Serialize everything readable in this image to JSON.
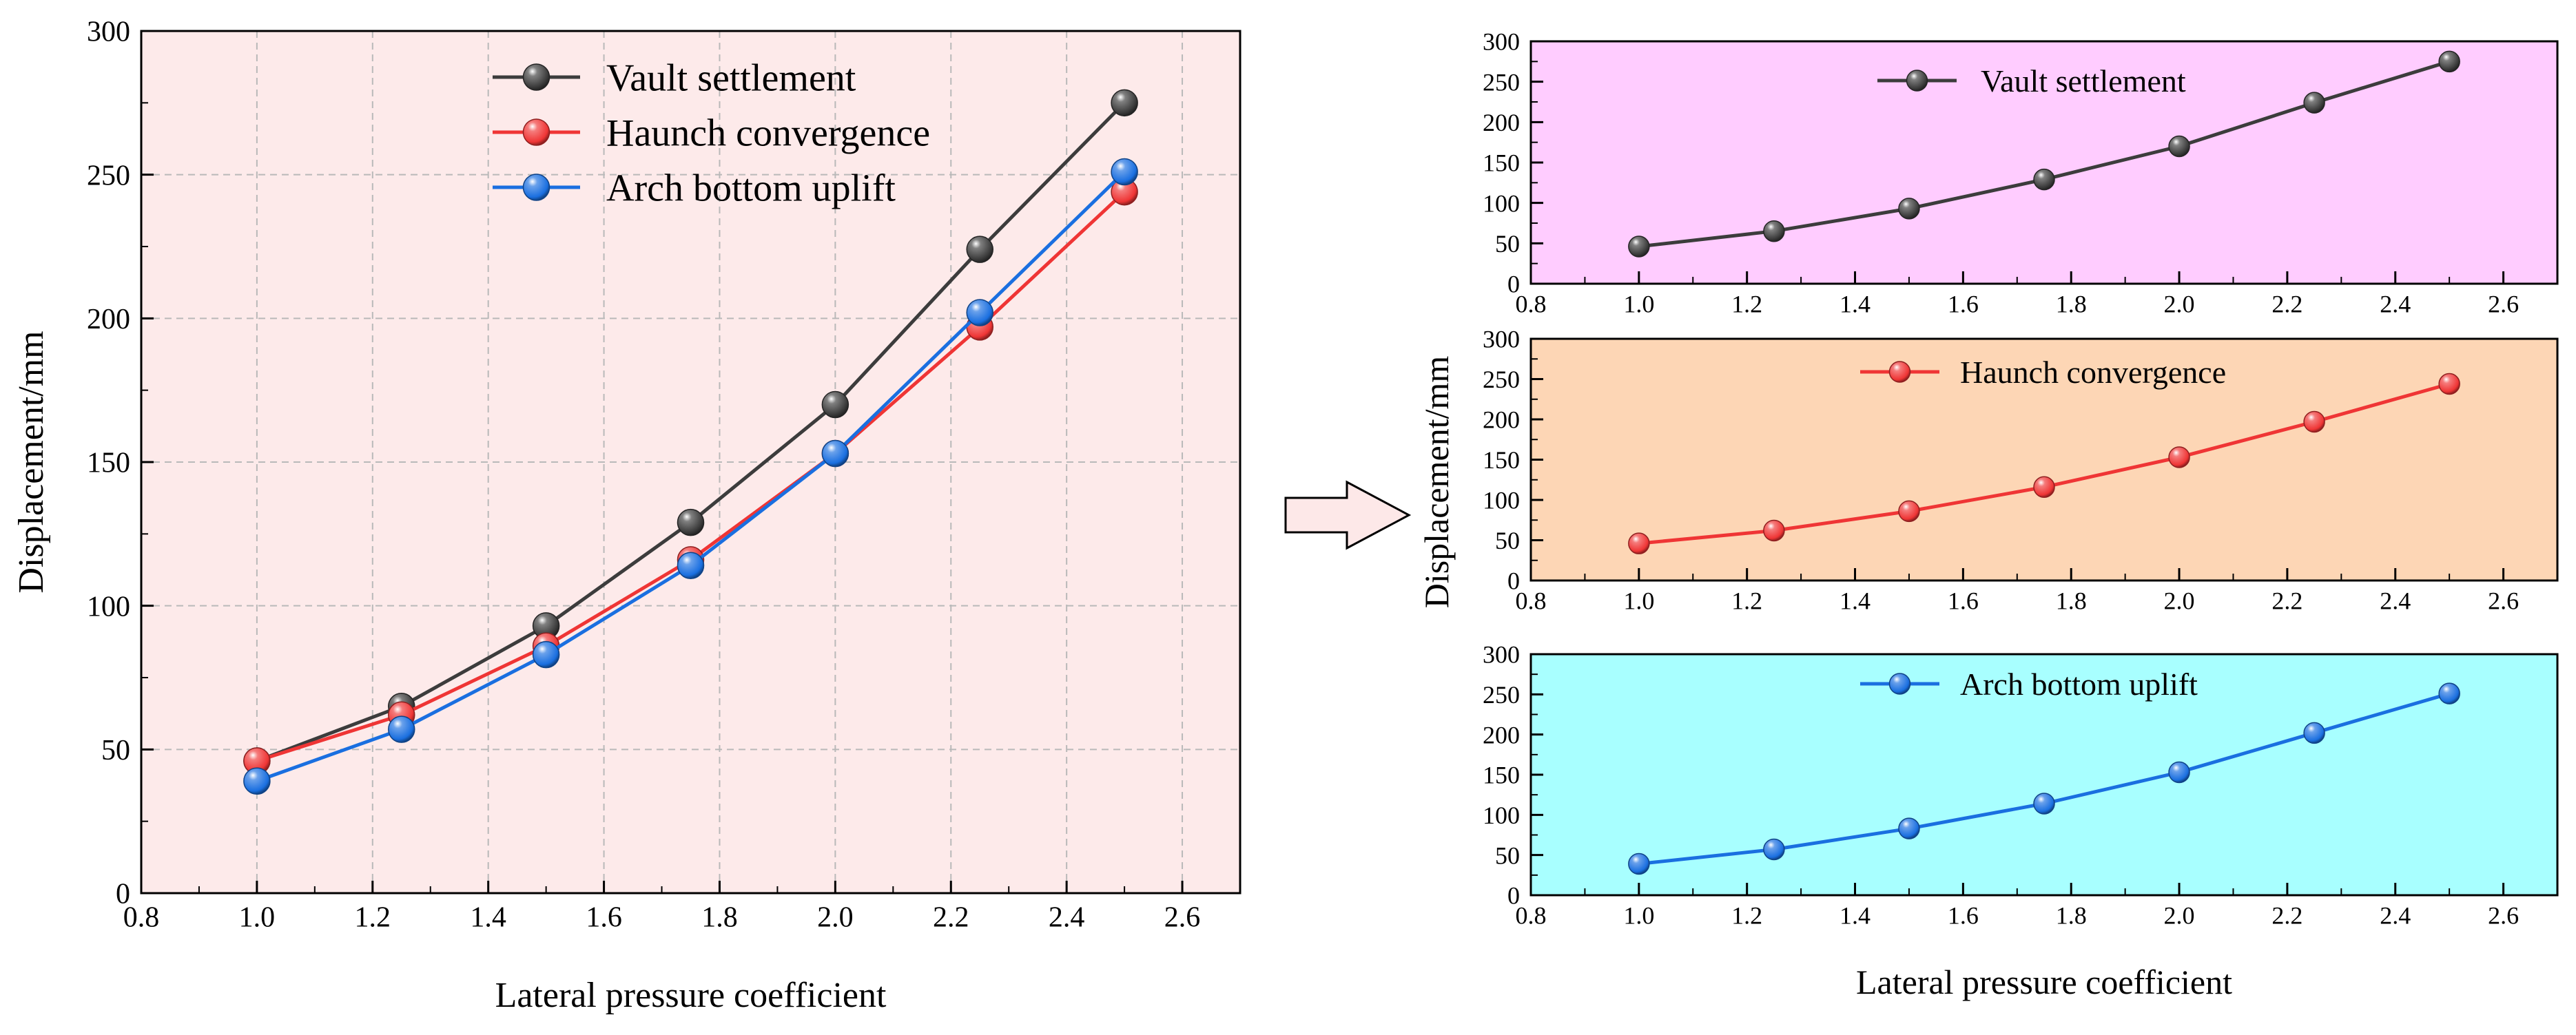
{
  "chart_data": [
    {
      "type": "line",
      "xlabel": "Lateral pressure coefficient",
      "ylabel": "Displacement/mm",
      "xlim": [
        0.8,
        2.7
      ],
      "ylim": [
        0,
        300
      ],
      "xticks": [
        "0.8",
        "1.0",
        "1.2",
        "1.4",
        "1.6",
        "1.8",
        "2.0",
        "2.2",
        "2.4",
        "2.6"
      ],
      "yticks": [
        "0",
        "50",
        "100",
        "150",
        "200",
        "250",
        "300"
      ],
      "grid": true,
      "background": "#fdeaea",
      "legend_position": "top-center",
      "x": [
        1.0,
        1.25,
        1.5,
        1.75,
        2.0,
        2.25,
        2.5
      ],
      "series": [
        {
          "name": "Vault settlement",
          "color": "#3c3c3c",
          "values": [
            46,
            65,
            93,
            129,
            170,
            224,
            275
          ]
        },
        {
          "name": "Haunch convergence",
          "color": "#ef3535",
          "values": [
            46,
            62,
            86,
            116,
            153,
            197,
            244
          ]
        },
        {
          "name": "Arch bottom uplift",
          "color": "#1a6fe0",
          "values": [
            39,
            57,
            83,
            114,
            153,
            202,
            251
          ]
        }
      ]
    },
    {
      "type": "line",
      "xlabel": "",
      "ylabel": "",
      "xlim": [
        0.8,
        2.7
      ],
      "ylim": [
        0,
        300
      ],
      "xticks": [
        "0.8",
        "1.0",
        "1.2",
        "1.4",
        "1.6",
        "1.8",
        "2.0",
        "2.2",
        "2.4",
        "2.6"
      ],
      "yticks": [
        "0",
        "50",
        "100",
        "150",
        "200",
        "250",
        "300"
      ],
      "grid": false,
      "background": "#ffccff",
      "legend_position": "top-center",
      "x": [
        1.0,
        1.25,
        1.5,
        1.75,
        2.0,
        2.25,
        2.5
      ],
      "series": [
        {
          "name": "Vault settlement",
          "color": "#3c3c3c",
          "values": [
            46,
            65,
            93,
            129,
            170,
            224,
            275
          ]
        }
      ]
    },
    {
      "type": "line",
      "xlabel": "",
      "ylabel": "Displacement/mm",
      "xlim": [
        0.8,
        2.7
      ],
      "ylim": [
        0,
        300
      ],
      "xticks": [
        "0.8",
        "1.0",
        "1.2",
        "1.4",
        "1.6",
        "1.8",
        "2.0",
        "2.2",
        "2.4",
        "2.6"
      ],
      "yticks": [
        "0",
        "50",
        "100",
        "150",
        "200",
        "250",
        "300"
      ],
      "grid": false,
      "background": "#fdd6b5",
      "legend_position": "top-center",
      "x": [
        1.0,
        1.25,
        1.5,
        1.75,
        2.0,
        2.25,
        2.5
      ],
      "series": [
        {
          "name": "Haunch convergence",
          "color": "#ef3535",
          "values": [
            46,
            62,
            86,
            116,
            153,
            197,
            244
          ]
        }
      ]
    },
    {
      "type": "line",
      "xlabel": "Lateral pressure coefficient",
      "ylabel": "",
      "xlim": [
        0.8,
        2.7
      ],
      "ylim": [
        0,
        300
      ],
      "xticks": [
        "0.8",
        "1.0",
        "1.2",
        "1.4",
        "1.6",
        "1.8",
        "2.0",
        "2.2",
        "2.4",
        "2.6"
      ],
      "yticks": [
        "0",
        "50",
        "100",
        "150",
        "200",
        "250",
        "300"
      ],
      "grid": false,
      "background": "#a8ffff",
      "legend_position": "top-center",
      "x": [
        1.0,
        1.25,
        1.5,
        1.75,
        2.0,
        2.25,
        2.5
      ],
      "series": [
        {
          "name": "Arch bottom uplift",
          "color": "#1a6fe0",
          "values": [
            39,
            57,
            83,
            114,
            153,
            202,
            251
          ]
        }
      ]
    }
  ]
}
